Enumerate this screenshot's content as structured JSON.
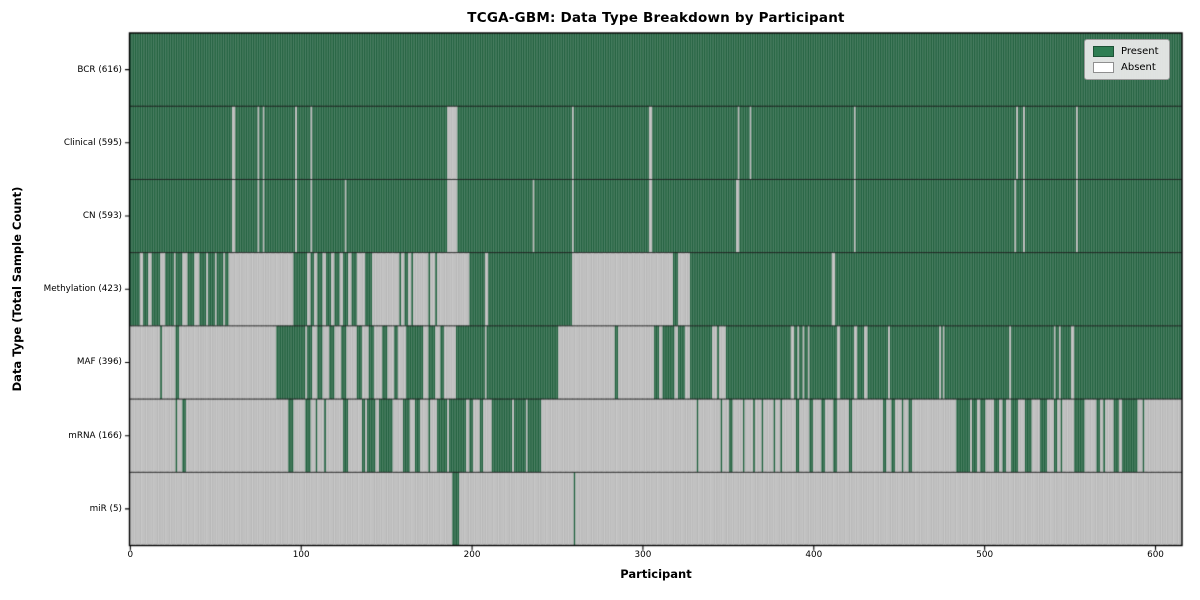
{
  "figure": {
    "title": "TCGA-GBM: Data Type Breakdown by Participant",
    "x_axis_label": "Participant",
    "y_axis_label": "Data Type (Total Sample Count)"
  },
  "colors": {
    "present": "#2e7d52",
    "present_edge": "#1d5236",
    "absent": "#ffffff",
    "absent_edge": "#8f8f8f",
    "row_separator": "#1a1a1a",
    "plot_border": "#000000",
    "legend_bg": "#e9e9e9",
    "legend_border": "#9a9a9a"
  },
  "legend_items": [
    {
      "label": "Present",
      "state": "present"
    },
    {
      "label": "Absent",
      "state": "absent"
    }
  ],
  "chart_data": {
    "type": "heatmap",
    "title": "TCGA-GBM: Data Type Breakdown by Participant",
    "xlabel": "Participant",
    "ylabel": "Data Type (Total Sample Count)",
    "x_ticks": [
      0,
      100,
      200,
      300,
      400,
      500,
      600
    ],
    "n_participants": 616,
    "legend": [
      "Present",
      "Absent"
    ],
    "legend_position": "upper right",
    "grid": false,
    "rows": [
      {
        "label": "BCR (616)",
        "data_type": "BCR",
        "total_samples": 616,
        "present_runs": [
          [
            0,
            616
          ]
        ]
      },
      {
        "label": "Clinical (595)",
        "data_type": "Clinical",
        "total_samples": 595,
        "present_runs": [
          [
            0,
            60
          ],
          [
            62,
            75
          ],
          [
            76,
            78
          ],
          [
            79,
            97
          ],
          [
            98,
            106
          ],
          [
            107,
            186
          ],
          [
            192,
            259
          ],
          [
            260,
            304
          ],
          [
            306,
            356
          ],
          [
            357,
            363
          ],
          [
            364,
            424
          ],
          [
            425,
            519
          ],
          [
            520,
            523
          ],
          [
            524,
            554
          ],
          [
            555,
            616
          ]
        ]
      },
      {
        "label": "CN (593)",
        "data_type": "CN",
        "total_samples": 593,
        "present_runs": [
          [
            0,
            60
          ],
          [
            62,
            75
          ],
          [
            76,
            78
          ],
          [
            79,
            97
          ],
          [
            98,
            106
          ],
          [
            107,
            126
          ],
          [
            127,
            186
          ],
          [
            192,
            236
          ],
          [
            237,
            259
          ],
          [
            260,
            304
          ],
          [
            306,
            355
          ],
          [
            357,
            424
          ],
          [
            425,
            518
          ],
          [
            519,
            523
          ],
          [
            524,
            554
          ],
          [
            555,
            616
          ]
        ]
      },
      {
        "label": "Methylation (423)",
        "data_type": "Methylation",
        "total_samples": 423,
        "present_runs": [
          [
            0,
            6
          ],
          [
            8,
            11
          ],
          [
            13,
            18
          ],
          [
            21,
            26
          ],
          [
            27,
            31
          ],
          [
            34,
            38
          ],
          [
            41,
            45
          ],
          [
            46,
            50
          ],
          [
            51,
            55
          ],
          [
            56,
            58
          ],
          [
            96,
            104
          ],
          [
            106,
            108
          ],
          [
            110,
            113
          ],
          [
            115,
            118
          ],
          [
            120,
            123
          ],
          [
            125,
            128
          ],
          [
            130,
            133
          ],
          [
            138,
            142
          ],
          [
            158,
            159
          ],
          [
            161,
            163
          ],
          [
            165,
            166
          ],
          [
            175,
            176
          ],
          [
            179,
            180
          ],
          [
            199,
            208
          ],
          [
            210,
            259
          ],
          [
            318,
            321
          ],
          [
            328,
            411
          ],
          [
            413,
            616
          ]
        ]
      },
      {
        "label": "MAF (396)",
        "data_type": "MAF",
        "total_samples": 396,
        "present_runs": [
          [
            18,
            19
          ],
          [
            27,
            29
          ],
          [
            86,
            103
          ],
          [
            104,
            107
          ],
          [
            110,
            113
          ],
          [
            117,
            120
          ],
          [
            124,
            127
          ],
          [
            133,
            136
          ],
          [
            140,
            143
          ],
          [
            148,
            151
          ],
          [
            155,
            157
          ],
          [
            162,
            172
          ],
          [
            175,
            179
          ],
          [
            182,
            184
          ],
          [
            191,
            208
          ],
          [
            209,
            251
          ],
          [
            284,
            286
          ],
          [
            307,
            310
          ],
          [
            312,
            319
          ],
          [
            321,
            325
          ],
          [
            328,
            341
          ],
          [
            344,
            345
          ],
          [
            349,
            387
          ],
          [
            389,
            391
          ],
          [
            392,
            394
          ],
          [
            395,
            397
          ],
          [
            398,
            414
          ],
          [
            416,
            424
          ],
          [
            426,
            430
          ],
          [
            432,
            444
          ],
          [
            445,
            474
          ],
          [
            475,
            476
          ],
          [
            477,
            515
          ],
          [
            516,
            541
          ],
          [
            542,
            544
          ],
          [
            545,
            551
          ],
          [
            553,
            616
          ]
        ]
      },
      {
        "label": "mRNA (166)",
        "data_type": "mRNA",
        "total_samples": 166,
        "present_runs": [
          [
            27,
            28
          ],
          [
            31,
            33
          ],
          [
            93,
            96
          ],
          [
            103,
            106
          ],
          [
            109,
            110
          ],
          [
            114,
            115
          ],
          [
            125,
            128
          ],
          [
            136,
            138
          ],
          [
            139,
            144
          ],
          [
            146,
            154
          ],
          [
            160,
            164
          ],
          [
            167,
            170
          ],
          [
            175,
            176
          ],
          [
            180,
            186
          ],
          [
            187,
            197
          ],
          [
            199,
            201
          ],
          [
            205,
            207
          ],
          [
            212,
            224
          ],
          [
            225,
            232
          ],
          [
            233,
            241
          ],
          [
            332,
            333
          ],
          [
            346,
            347
          ],
          [
            351,
            353
          ],
          [
            359,
            360
          ],
          [
            365,
            366
          ],
          [
            370,
            371
          ],
          [
            377,
            378
          ],
          [
            381,
            382
          ],
          [
            390,
            392
          ],
          [
            398,
            400
          ],
          [
            405,
            407
          ],
          [
            412,
            414
          ],
          [
            421,
            423
          ],
          [
            441,
            443
          ],
          [
            446,
            448
          ],
          [
            452,
            453
          ],
          [
            456,
            458
          ],
          [
            484,
            492
          ],
          [
            493,
            496
          ],
          [
            498,
            501
          ],
          [
            506,
            509
          ],
          [
            511,
            513
          ],
          [
            516,
            520
          ],
          [
            524,
            528
          ],
          [
            533,
            537
          ],
          [
            541,
            543
          ],
          [
            545,
            546
          ],
          [
            553,
            559
          ],
          [
            566,
            568
          ],
          [
            570,
            571
          ],
          [
            576,
            579
          ],
          [
            581,
            590
          ],
          [
            593,
            594
          ]
        ]
      },
      {
        "label": "miR (5)",
        "data_type": "miR",
        "total_samples": 5,
        "present_runs": [
          [
            189,
            193
          ],
          [
            260,
            261
          ]
        ]
      }
    ]
  }
}
